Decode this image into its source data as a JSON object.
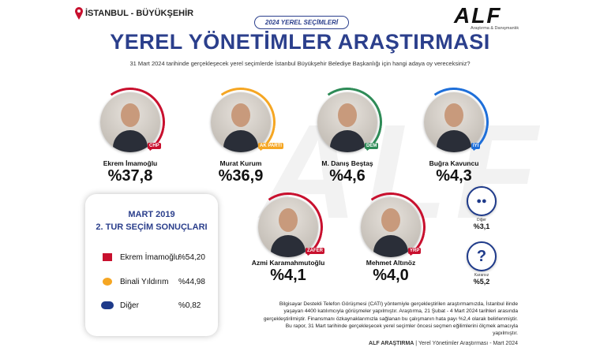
{
  "header": {
    "location": "İSTANBUL - BÜYÜKŞEHİR",
    "badge": "2024 YEREL SEÇİMLERİ",
    "title": "YEREL YÖNETİMLER ARAŞTIRMASI",
    "question": "31 Mart 2024 tarihinde gerçekleşecek yerel seçimlerde İstanbul Büyükşehir Belediye Başkanlığı için hangi adaya oy vereceksiniz?",
    "logo": "ALF",
    "logo_subtitle": "Araştırma & Danışmanlık"
  },
  "candidates": [
    {
      "name": "Ekrem İmamoğlu",
      "party": "CHP",
      "result": "%37,8"
    },
    {
      "name": "Murat Kurum",
      "party": "AK PARTİ",
      "result": "%36,9"
    },
    {
      "name": "M. Danış Beştaş",
      "party": "DEM",
      "result": "%4,6"
    },
    {
      "name": "Buğra Kavuncu",
      "party": "İYİ",
      "result": "%4,3"
    },
    {
      "name": "Azmi Karamahmutoğlu",
      "party": "ZAFER",
      "result": "%4,1"
    },
    {
      "name": "Mehmet Altınöz",
      "party": "YRP",
      "result": "%4,0"
    }
  ],
  "others": [
    {
      "name": "Diğer",
      "result": "%3,1"
    },
    {
      "name": "Kararsız",
      "result": "%5,2"
    }
  ],
  "past_results": {
    "title": "MART 2019",
    "subtitle": "2. TUR SEÇİM SONUÇLARI",
    "rows": [
      [
        "Ekrem İmamoğlu",
        "%54,20"
      ],
      [
        "Binali Yıldırım",
        "%44,98"
      ],
      [
        "Diğer",
        "%0,82"
      ]
    ]
  },
  "methodology": "Bilgisayar Destekli Telefon Görüşmesi (CATI) yöntemiyle gerçekleştirilen araştırmamızda, İstanbul ilinde yaşayan 4400 katılımcıyla görüşmeler yapılmıştır. Araştırma, 21 Şubat - 4 Mart 2024 tarihleri arasında gerçekleştirilmiştir. Finansmanı özkaynaklarımızla sağlanan bu çalışmanın hata payı %2,4 olarak belirlenmiştir. Bu rapor, 31 Mart tarihinde gerçekleşecek yerel seçimler öncesi seçmen eğilimlerini ölçmek amacıyla yapılmıştır.",
  "footer": {
    "brand": "ALF ARAŞTIRMA",
    "text": "Yerel Yönetimler Araştırması - Mart 2024"
  }
}
